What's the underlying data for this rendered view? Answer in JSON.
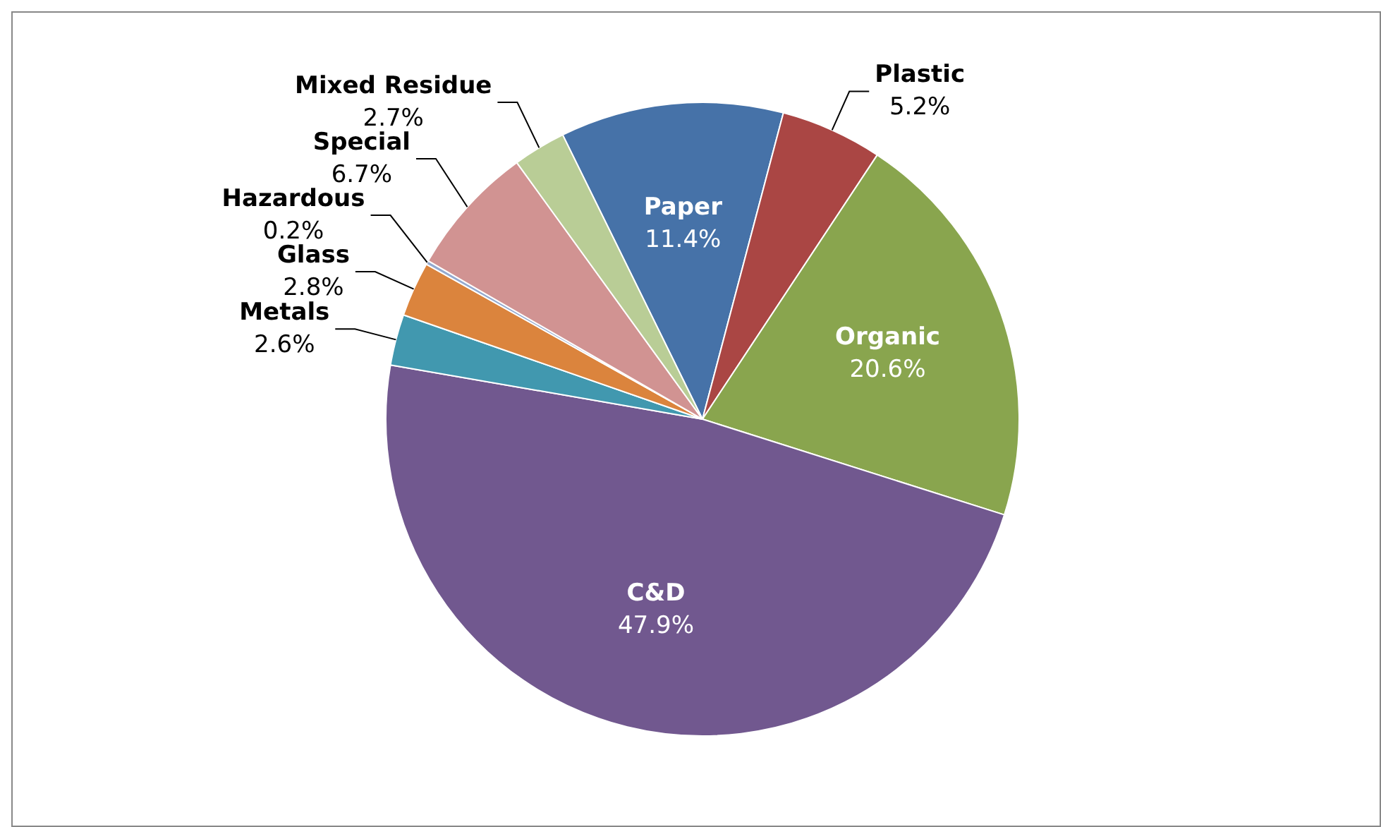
{
  "chart_data": {
    "type": "pie",
    "categories": [
      "Paper",
      "Plastic",
      "Organic",
      "C&D",
      "Metals",
      "Glass",
      "Hazardous",
      "Special",
      "Mixed Residue"
    ],
    "values": [
      11.4,
      5.2,
      20.6,
      47.9,
      2.6,
      2.8,
      0.2,
      6.7,
      2.7
    ],
    "value_labels": [
      "11.4%",
      "5.2%",
      "20.6%",
      "47.9%",
      "2.6%",
      "2.8%",
      "0.2%",
      "6.7%",
      "2.7%"
    ],
    "colors": [
      "#4672a8",
      "#aa4644",
      "#89a54e",
      "#71588f",
      "#4198af",
      "#db843d",
      "#93a9cf",
      "#d19392",
      "#b9cd96"
    ],
    "legend": false
  }
}
